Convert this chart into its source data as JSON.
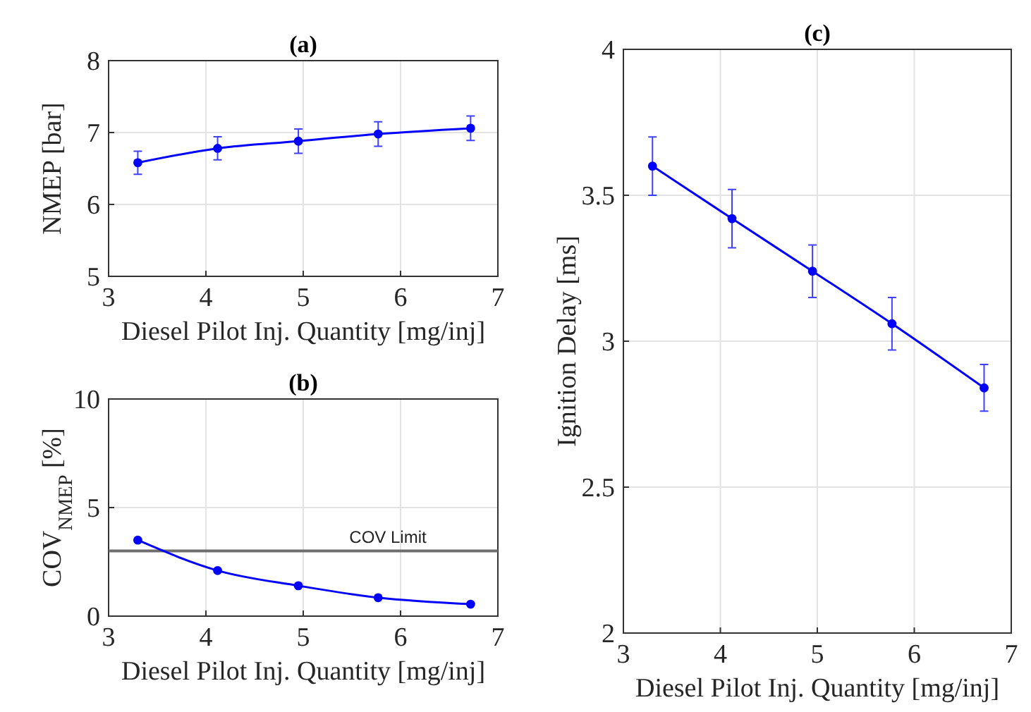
{
  "chart_data": [
    {
      "type": "line",
      "title": "(a)",
      "xlabel": "Diesel Pilot Inj. Quantity [mg/inj]",
      "ylabel": "NMEP [bar]",
      "x": [
        3.3,
        4.12,
        4.95,
        5.77,
        6.72
      ],
      "series": [
        {
          "color": "#0000ff",
          "values": [
            6.58,
            6.78,
            6.88,
            6.98,
            7.06
          ],
          "errors": [
            0.16,
            0.16,
            0.17,
            0.17,
            0.17
          ]
        }
      ],
      "xlim": [
        3,
        7
      ],
      "xticks": [
        3,
        4,
        5,
        6,
        7
      ],
      "ylim": [
        5,
        8
      ],
      "yticks": [
        5,
        6,
        7,
        8
      ],
      "grid": true,
      "marker": "circle",
      "line_style": "solid"
    },
    {
      "type": "line",
      "title": "(b)",
      "xlabel": "Diesel Pilot Inj. Quantity [mg/inj]",
      "ylabel": "COV$_{NMEP}$ [%]",
      "x": [
        3.3,
        4.12,
        4.95,
        5.77,
        6.72
      ],
      "series": [
        {
          "color": "#0000ff",
          "values": [
            3.5,
            2.1,
            1.4,
            0.85,
            0.55
          ]
        }
      ],
      "xlim": [
        3,
        7
      ],
      "xticks": [
        3,
        4,
        5,
        6,
        7
      ],
      "ylim": [
        0,
        10
      ],
      "yticks": [
        0,
        5,
        10
      ],
      "grid": true,
      "marker": "circle",
      "line_style": "solid",
      "ref_lines": [
        {
          "axis": "y",
          "value": 3,
          "label": "COV Limit",
          "color": "#6e6e6e"
        }
      ]
    },
    {
      "type": "line",
      "title": "(c)",
      "xlabel": "Diesel Pilot Inj. Quantity [mg/inj]",
      "ylabel": "Ignition Delay [ms]",
      "x": [
        3.3,
        4.12,
        4.95,
        5.77,
        6.72
      ],
      "series": [
        {
          "color": "#0000ff",
          "values": [
            3.6,
            3.42,
            3.24,
            3.06,
            2.84
          ],
          "errors": [
            0.1,
            0.1,
            0.09,
            0.09,
            0.08
          ]
        }
      ],
      "xlim": [
        3,
        7
      ],
      "xticks": [
        3,
        4,
        5,
        6,
        7
      ],
      "ylim": [
        2,
        4
      ],
      "yticks": [
        2,
        2.5,
        3,
        3.5,
        4
      ],
      "grid": true,
      "marker": "circle",
      "line_style": "solid"
    }
  ]
}
